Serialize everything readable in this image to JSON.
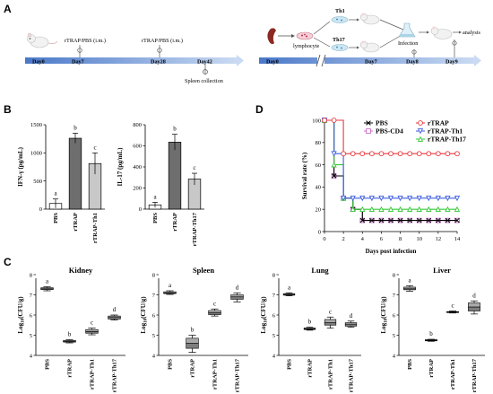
{
  "panel_labels": {
    "a": "A",
    "b": "B",
    "c": "C",
    "d": "D"
  },
  "timeline1": {
    "days": [
      "Day0",
      "Day7",
      "Day28",
      "Day42"
    ],
    "inj_label_1": "rTRAP/PBS (i.m.)",
    "inj_label_2": "rTRAP/PBS (i.m.)",
    "collection": "Spleen collection"
  },
  "timeline2": {
    "lymphocyte": "lymphocyte",
    "th1": "Th1",
    "th17": "Th17",
    "infection": "Infection",
    "analysis": "analysis",
    "days": [
      "Day0",
      "Day7",
      "Day8",
      "Day9"
    ]
  },
  "chart_data": [
    {
      "id": "B-left",
      "type": "bar",
      "ylabel": "IFN-γ (pg/mL)",
      "categories": [
        "PBS",
        "rTRAP",
        "rTRAP-Th1"
      ],
      "values": [
        100,
        1260,
        810
      ],
      "errors": [
        80,
        90,
        190
      ],
      "letters": [
        "a",
        "b",
        "c"
      ],
      "colors": [
        "#ffffff",
        "#6e6e6e",
        "#c8c8c8"
      ],
      "ylim": [
        0,
        1500
      ],
      "yticks": [
        0,
        500,
        1000,
        1500
      ],
      "ytick_labels": [
        "0",
        "500",
        "1000",
        "1500"
      ]
    },
    {
      "id": "B-right",
      "type": "bar",
      "ylabel": "IL-17 (pg/mL)",
      "categories": [
        "PBS",
        "rTRAP",
        "rTRAP-Th17"
      ],
      "values": [
        40,
        635,
        285
      ],
      "errors": [
        25,
        75,
        55
      ],
      "letters": [
        "a",
        "b",
        "c"
      ],
      "colors": [
        "#ffffff",
        "#6e6e6e",
        "#c8c8c8"
      ],
      "ylim": [
        0,
        800
      ],
      "yticks": [
        0,
        200,
        400,
        600,
        800
      ],
      "ytick_labels": [
        "0",
        "200",
        "400",
        "600",
        "800"
      ]
    },
    {
      "id": "D",
      "type": "line",
      "step": true,
      "xlabel": "Days post infection",
      "ylabel": "Survival rate (%)",
      "xlim": [
        0,
        14
      ],
      "ylim": [
        0,
        100
      ],
      "xticks": [
        0,
        2,
        4,
        6,
        8,
        10,
        12,
        14
      ],
      "yticks": [
        0,
        20,
        40,
        60,
        80,
        100
      ],
      "legend_position": "top-right",
      "series": [
        {
          "name": "PBS",
          "color": "#000000",
          "marker": "x",
          "points": [
            [
              0,
              100
            ],
            [
              1,
              100
            ],
            [
              1,
              50
            ],
            [
              2,
              50
            ],
            [
              2,
              30
            ],
            [
              3,
              30
            ],
            [
              3,
              20
            ],
            [
              4,
              20
            ],
            [
              4,
              10
            ],
            [
              14,
              10
            ]
          ]
        },
        {
          "name": "rTRAP",
          "color": "#e8383d",
          "marker": "circle",
          "points": [
            [
              0,
              100
            ],
            [
              2,
              100
            ],
            [
              2,
              70
            ],
            [
              14,
              70
            ]
          ]
        },
        {
          "name": "PBS-CD4",
          "color": "#c86bc8",
          "marker": "square",
          "points": [
            [
              0,
              100
            ],
            [
              1,
              100
            ],
            [
              1,
              50
            ],
            [
              2,
              50
            ],
            [
              2,
              30
            ],
            [
              3,
              30
            ],
            [
              3,
              20
            ],
            [
              4,
              20
            ],
            [
              4,
              10
            ],
            [
              14,
              10
            ]
          ]
        },
        {
          "name": "rTRAP-Th1",
          "color": "#3f5fe0",
          "marker": "tri-down",
          "points": [
            [
              0,
              100
            ],
            [
              1,
              100
            ],
            [
              1,
              70
            ],
            [
              2,
              70
            ],
            [
              2,
              30
            ],
            [
              14,
              30
            ]
          ]
        },
        {
          "name": "rTRAP-Th17",
          "color": "#38c838",
          "marker": "tri-up",
          "points": [
            [
              0,
              100
            ],
            [
              1,
              100
            ],
            [
              1,
              60
            ],
            [
              2,
              60
            ],
            [
              2,
              30
            ],
            [
              3,
              30
            ],
            [
              3,
              20
            ],
            [
              14,
              20
            ]
          ]
        }
      ]
    },
    {
      "id": "C-kidney",
      "type": "box",
      "title": "Kidney",
      "ylabel": "Log10(CFU/g)",
      "ylim": [
        4,
        8
      ],
      "yticks": [
        4,
        5,
        6,
        7,
        8
      ],
      "categories": [
        "PBS",
        "rTRAP",
        "rTRAP-Th1",
        "rTRAP-Th17"
      ],
      "boxes": [
        {
          "min": 7.2,
          "q1": 7.26,
          "median": 7.3,
          "q3": 7.35,
          "max": 7.4,
          "letter": "a"
        },
        {
          "min": 4.62,
          "q1": 4.66,
          "median": 4.7,
          "q3": 4.74,
          "max": 4.78,
          "letter": "b"
        },
        {
          "min": 5.02,
          "q1": 5.1,
          "median": 5.18,
          "q3": 5.28,
          "max": 5.35,
          "letter": "c"
        },
        {
          "min": 5.75,
          "q1": 5.8,
          "median": 5.88,
          "q3": 5.95,
          "max": 6.0,
          "letter": "d"
        }
      ]
    },
    {
      "id": "C-spleen",
      "type": "box",
      "title": "Spleen",
      "ylabel": "Log10(CFU/g)",
      "ylim": [
        4,
        8
      ],
      "yticks": [
        4,
        5,
        6,
        7,
        8
      ],
      "categories": [
        "PBS",
        "rTRAP",
        "rTRAP-Th1",
        "rTRAP-Th17"
      ],
      "boxes": [
        {
          "min": 7.02,
          "q1": 7.06,
          "median": 7.1,
          "q3": 7.15,
          "max": 7.2,
          "letter": "a"
        },
        {
          "min": 4.15,
          "q1": 4.35,
          "median": 4.6,
          "q3": 4.85,
          "max": 5.0,
          "letter": "b"
        },
        {
          "min": 5.95,
          "q1": 6.02,
          "median": 6.12,
          "q3": 6.22,
          "max": 6.3,
          "letter": "c"
        },
        {
          "min": 6.65,
          "q1": 6.78,
          "median": 6.9,
          "q3": 7.0,
          "max": 7.1,
          "letter": "d"
        }
      ]
    },
    {
      "id": "C-lung",
      "type": "box",
      "title": "Lung",
      "ylabel": "Log10(CFU/g)",
      "ylim": [
        4,
        8
      ],
      "yticks": [
        4,
        5,
        6,
        7,
        8
      ],
      "categories": [
        "PBS",
        "rTRAP",
        "rTRAP-Th1",
        "rTRAP-Th17"
      ],
      "boxes": [
        {
          "min": 6.95,
          "q1": 6.98,
          "median": 7.02,
          "q3": 7.06,
          "max": 7.1,
          "letter": "a"
        },
        {
          "min": 5.25,
          "q1": 5.28,
          "median": 5.32,
          "q3": 5.36,
          "max": 5.4,
          "letter": "b"
        },
        {
          "min": 5.35,
          "q1": 5.5,
          "median": 5.62,
          "q3": 5.78,
          "max": 5.9,
          "letter": "c"
        },
        {
          "min": 5.4,
          "q1": 5.45,
          "median": 5.55,
          "q3": 5.62,
          "max": 5.7,
          "letter": "d"
        }
      ]
    },
    {
      "id": "C-liver",
      "type": "box",
      "title": "Liver",
      "ylabel": "Log10(CFU/g)",
      "ylim": [
        4,
        8
      ],
      "yticks": [
        4,
        5,
        6,
        7,
        8
      ],
      "categories": [
        "PBS",
        "rTRAP",
        "rTRAP-Th1",
        "rTRAP-Th17"
      ],
      "boxes": [
        {
          "min": 7.18,
          "q1": 7.25,
          "median": 7.3,
          "q3": 7.38,
          "max": 7.45,
          "letter": "a"
        },
        {
          "min": 4.7,
          "q1": 4.72,
          "median": 4.75,
          "q3": 4.78,
          "max": 4.8,
          "letter": "b"
        },
        {
          "min": 6.1,
          "q1": 6.12,
          "median": 6.15,
          "q3": 6.17,
          "max": 6.2,
          "letter": "c"
        },
        {
          "min": 6.05,
          "q1": 6.2,
          "median": 6.4,
          "q3": 6.6,
          "max": 6.7,
          "letter": "d"
        }
      ]
    }
  ]
}
